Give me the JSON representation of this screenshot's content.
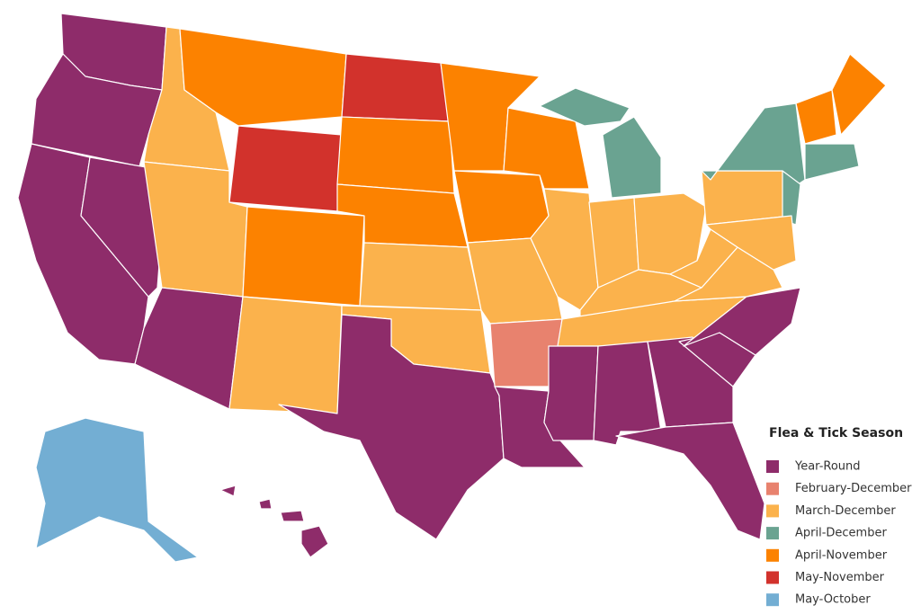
{
  "legend": {
    "title": "Flea & Tick Season",
    "items": [
      {
        "label": "Year-Round",
        "color": "#8e2c6a"
      },
      {
        "label": "February-December",
        "color": "#e8826e"
      },
      {
        "label": "March-December",
        "color": "#fbb24c"
      },
      {
        "label": "April-December",
        "color": "#6aa391"
      },
      {
        "label": "April-November",
        "color": "#fc8200"
      },
      {
        "label": "May-November",
        "color": "#d2322c"
      },
      {
        "label": "May-October",
        "color": "#73aed3"
      }
    ]
  }
}
